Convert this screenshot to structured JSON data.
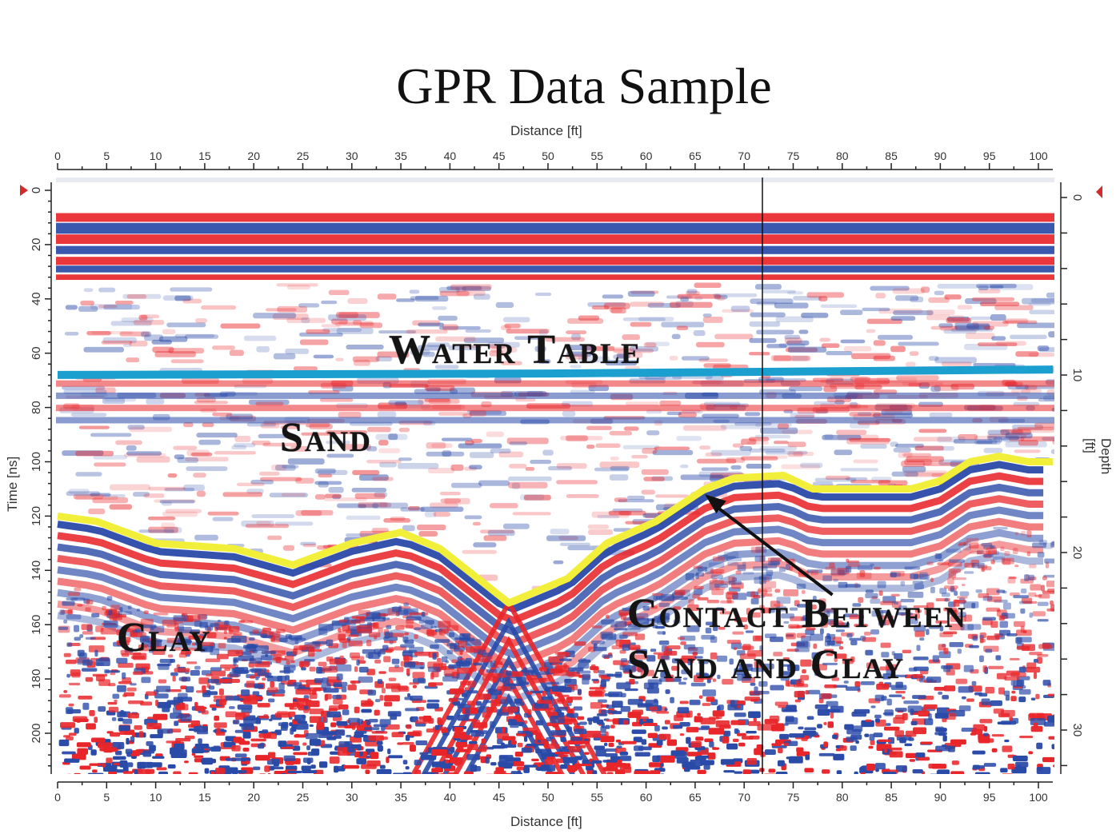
{
  "chart_data": {
    "type": "heatmap",
    "subtype": "GPR radargram (ground penetrating radar profile)",
    "title": "GPR Data Sample",
    "xlabel": "Distance [ft]",
    "ylabel_left": "Time [ns]",
    "ylabel_right": "Depth [ft]",
    "xlim": [
      0,
      101.5
    ],
    "ylim_time": [
      0,
      215
    ],
    "ylim_depth": [
      0,
      32
    ],
    "x_ticks": [
      0,
      5,
      10,
      15,
      20,
      25,
      30,
      35,
      40,
      45,
      50,
      55,
      60,
      65,
      70,
      75,
      80,
      85,
      90,
      95,
      100
    ],
    "x_tick_labels": [
      "0",
      "5",
      "10",
      "15",
      "20",
      "25",
      "30",
      "35",
      "40",
      "45",
      "50",
      "55",
      "60",
      "65",
      "70",
      "75",
      "80",
      "85",
      "90",
      "95",
      "100"
    ],
    "time_ticks": [
      0,
      20,
      40,
      60,
      80,
      100,
      120,
      140,
      160,
      180,
      200
    ],
    "depth_ticks": [
      0,
      10,
      20,
      30
    ],
    "colormap": {
      "positive": "#e8262a",
      "negative": "#2a4aa8",
      "zero": "#ffffff"
    },
    "cursor_line_x_ft": 72,
    "grid": false,
    "legend": null,
    "series": [
      {
        "name": "Water Table",
        "color": "#1a9fcf",
        "style": "line",
        "points": [
          [
            0,
            68
          ],
          [
            50,
            67.5
          ],
          [
            101.5,
            66
          ]
        ]
      },
      {
        "name": "Contact Between Sand and Clay",
        "color": "#f2ef3a",
        "style": "line",
        "points": [
          [
            0,
            120
          ],
          [
            4,
            122
          ],
          [
            10,
            130
          ],
          [
            18,
            132
          ],
          [
            24,
            138
          ],
          [
            30,
            130
          ],
          [
            35,
            126
          ],
          [
            39,
            132
          ],
          [
            46,
            152
          ],
          [
            52,
            143
          ],
          [
            56,
            130
          ],
          [
            61,
            122
          ],
          [
            66,
            110
          ],
          [
            69,
            106
          ],
          [
            74,
            105
          ],
          [
            77,
            110
          ],
          [
            81,
            110
          ],
          [
            87,
            110
          ],
          [
            90,
            107
          ],
          [
            93,
            100
          ],
          [
            96,
            98
          ],
          [
            99,
            100
          ],
          [
            101.5,
            100
          ]
        ]
      }
    ],
    "annotations": [
      {
        "text": "Water Table",
        "x_ft": 34,
        "time_ns": 58
      },
      {
        "text": "Sand",
        "x_ft": 22.5,
        "time_ns": 91
      },
      {
        "text": "Clay",
        "x_ft": 6,
        "time_ns": 165
      },
      {
        "text": "Contact Between",
        "x_ft": 58.5,
        "time_ns": 157
      },
      {
        "text": "Sand and Clay",
        "x_ft": 58.5,
        "time_ns": 176
      },
      {
        "text": "arrow",
        "from": [
          79,
          149
        ],
        "to": [
          66,
          112
        ]
      }
    ]
  },
  "labels": {
    "title": "GPR Data Sample",
    "x_top": "Distance [ft]",
    "x_bottom": "Distance [ft]",
    "y_left": "Time [ns]",
    "y_right": "Depth [ft]",
    "water_table": "Water Table",
    "sand": "Sand",
    "clay": "Clay",
    "contact_line1": "Contact Between",
    "contact_line2": "Sand and Clay"
  }
}
